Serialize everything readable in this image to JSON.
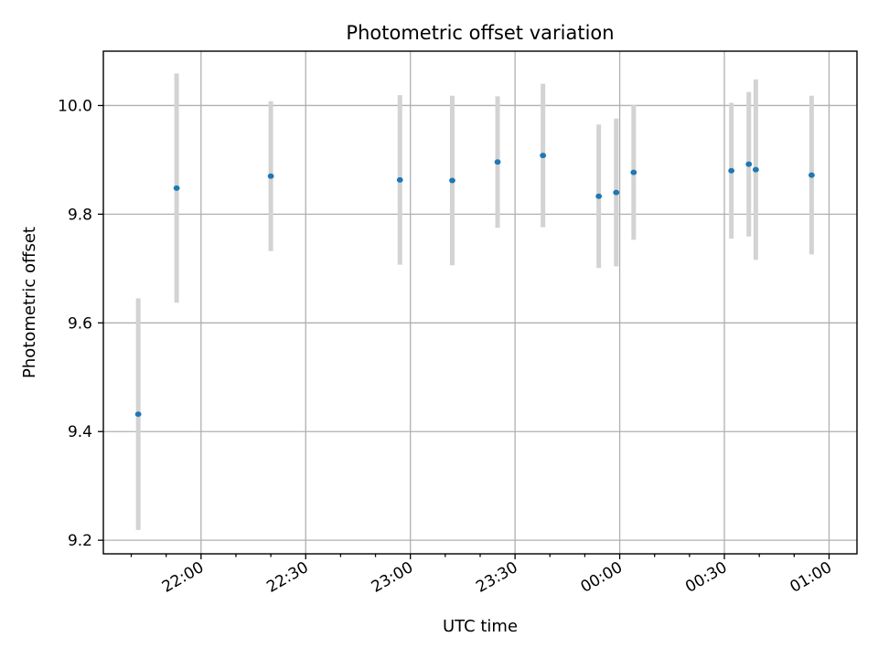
{
  "chart_data": {
    "type": "scatter",
    "title": "Photometric offset variation",
    "xlabel": "UTC time",
    "ylabel": "Photometric offset",
    "x_unit": "UTC time (HH:MM)",
    "xlim": [
      "21:32",
      "01:08"
    ],
    "ylim": [
      9.175,
      10.1
    ],
    "xticks": [
      "22:00",
      "22:30",
      "23:00",
      "23:30",
      "00:00",
      "00:30",
      "01:00"
    ],
    "yticks": [
      "9.2",
      "9.4",
      "9.6",
      "9.8",
      "10.0"
    ],
    "grid": true,
    "series": [
      {
        "marker_color": "#1f77b4",
        "errorbar_color": "#d3d3d3",
        "points": [
          {
            "x": "21:42",
            "y": 9.432,
            "err": 0.213
          },
          {
            "x": "21:53",
            "y": 9.848,
            "err": 0.211
          },
          {
            "x": "22:20",
            "y": 9.87,
            "err": 0.138
          },
          {
            "x": "22:57",
            "y": 9.863,
            "err": 0.156
          },
          {
            "x": "23:12",
            "y": 9.862,
            "err": 0.156
          },
          {
            "x": "23:25",
            "y": 9.896,
            "err": 0.121
          },
          {
            "x": "23:38",
            "y": 9.908,
            "err": 0.132
          },
          {
            "x": "23:54",
            "y": 9.833,
            "err": 0.132
          },
          {
            "x": "23:59",
            "y": 9.84,
            "err": 0.136
          },
          {
            "x": "00:04",
            "y": 9.877,
            "err": 0.124
          },
          {
            "x": "00:32",
            "y": 9.88,
            "err": 0.125
          },
          {
            "x": "00:37",
            "y": 9.892,
            "err": 0.133
          },
          {
            "x": "00:39",
            "y": 9.882,
            "err": 0.166
          },
          {
            "x": "00:55",
            "y": 9.872,
            "err": 0.146
          }
        ]
      }
    ]
  }
}
